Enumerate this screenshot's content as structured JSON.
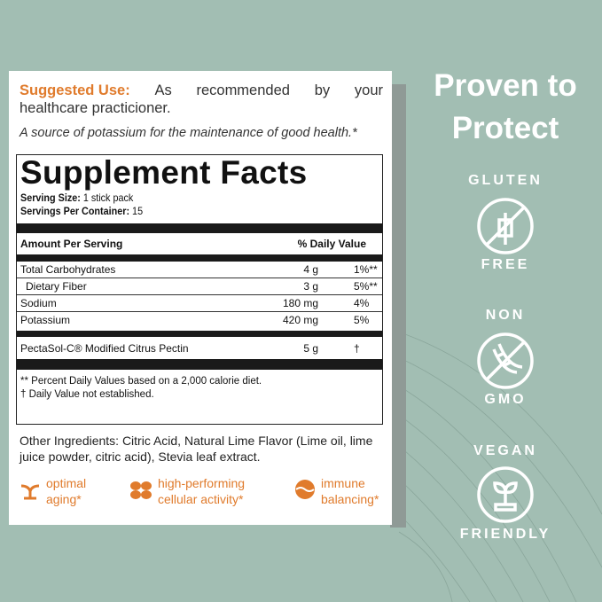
{
  "suggested_use": {
    "label": "Suggested Use:",
    "words": [
      "As",
      "recommended",
      "by",
      "your"
    ],
    "line2": "healthcare practicioner.",
    "source": "A source of potassium for the maintenance of good health.*"
  },
  "facts": {
    "title": "Supplement Facts",
    "serving_size_label": "Serving Size:",
    "serving_size": "1 stick pack",
    "servings_label": "Servings Per Container:",
    "servings": "15",
    "amount_header": "Amount Per Serving",
    "dv_header": "% Daily Value",
    "rows": [
      {
        "name": "Total Carbohydrates",
        "amount": "4 g",
        "dv": "1%**"
      },
      {
        "name": "Dietary Fiber",
        "amount": "3 g",
        "dv": "5%**"
      },
      {
        "name": "Sodium",
        "amount": "180 mg",
        "dv": "4%"
      },
      {
        "name": "Potassium",
        "amount": "420 mg",
        "dv": "5%"
      }
    ],
    "special": {
      "name": "PectaSol-C® Modified Citrus Pectin",
      "amount": "5 g",
      "dv": "†"
    },
    "footnotes": [
      "** Percent Daily Values based on a 2,000 calorie diet.",
      "† Daily Value not established."
    ]
  },
  "other_ingredients": "Other Ingredients: Citric Acid, Natural Lime Flavor (Lime oil, lime juice powder, citric acid), Stevia leaf extract.",
  "benefits": [
    {
      "l1": "optimal",
      "l2": "aging*",
      "icon": "sprout-icon"
    },
    {
      "l1": "high-performing",
      "l2": "cellular activity*",
      "icon": "leaves-icon"
    },
    {
      "l1": "immune",
      "l2": "balancing*",
      "icon": "sphere-icon"
    }
  ],
  "right": {
    "headline1": "Proven to",
    "headline2": "Protect",
    "badges": [
      {
        "top": "GLUTEN",
        "bottom": "FREE",
        "icon": "no-wheat-icon"
      },
      {
        "top": "NON",
        "bottom": "GMO",
        "icon": "no-dna-icon"
      },
      {
        "top": "VEGAN",
        "bottom": "FRIENDLY",
        "icon": "plant-icon"
      }
    ]
  },
  "colors": {
    "background": "#a2beb3",
    "accent": "#e07b2c"
  }
}
